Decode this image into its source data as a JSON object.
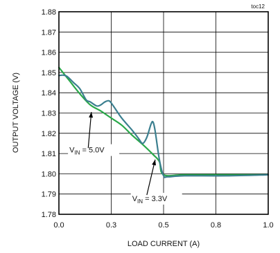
{
  "chart_data": {
    "type": "line",
    "tag": "toc12",
    "xlabel": "LOAD CURRENT (A)",
    "ylabel": "OUTPUT VOLTAGE (V)",
    "xlim": [
      0,
      1.0
    ],
    "ylim": [
      1.78,
      1.88
    ],
    "x_ticks": [
      "0.0",
      "0.3",
      "0.5",
      "0.8",
      "1.0"
    ],
    "x_tick_values": [
      0.0,
      0.25,
      0.5,
      0.75,
      1.0
    ],
    "y_ticks": [
      "1.78",
      "1.79",
      "1.80",
      "1.81",
      "1.82",
      "1.83",
      "1.84",
      "1.85",
      "1.86",
      "1.87",
      "1.88"
    ],
    "grid": true,
    "series": [
      {
        "color": "#2aa84a",
        "x": [
          0.0,
          0.05,
          0.1,
          0.15,
          0.2,
          0.25,
          0.3,
          0.35,
          0.4,
          0.45,
          0.48,
          0.5,
          0.6,
          0.8,
          1.0
        ],
        "y": [
          1.8525,
          1.846,
          1.8395,
          1.834,
          1.831,
          1.8275,
          1.824,
          1.819,
          1.8145,
          1.8095,
          1.806,
          1.7995,
          1.7995,
          1.7995,
          1.7995
        ]
      },
      {
        "color": "#3b7f8f",
        "x": [
          0.0,
          0.02,
          0.04,
          0.07,
          0.1,
          0.13,
          0.15,
          0.18,
          0.2,
          0.22,
          0.24,
          0.26,
          0.3,
          0.35,
          0.38,
          0.4,
          0.42,
          0.44,
          0.45,
          0.46,
          0.48,
          0.5,
          0.52,
          0.6,
          0.8,
          1.0
        ],
        "y": [
          1.8485,
          1.8487,
          1.848,
          1.845,
          1.842,
          1.8365,
          1.8355,
          1.8335,
          1.834,
          1.8355,
          1.836,
          1.8335,
          1.8275,
          1.8215,
          1.8175,
          1.815,
          1.818,
          1.8245,
          1.8255,
          1.821,
          1.807,
          1.799,
          1.7985,
          1.799,
          1.799,
          1.7995
        ]
      }
    ],
    "annotations": [
      {
        "text_main": "V",
        "text_sub": "IN",
        "text_rest": " = 5.0V",
        "text_x": 0.05,
        "text_y": 1.8105,
        "arrow_from": [
          0.14,
          1.8127
        ],
        "arrow_to": [
          0.155,
          1.8305
        ]
      },
      {
        "text_main": "V",
        "text_sub": "IN",
        "text_rest": " = 3.3V",
        "text_x": 0.35,
        "text_y": 1.7865,
        "arrow_from": [
          0.42,
          1.7895
        ],
        "arrow_to": [
          0.46,
          1.807
        ]
      }
    ]
  }
}
